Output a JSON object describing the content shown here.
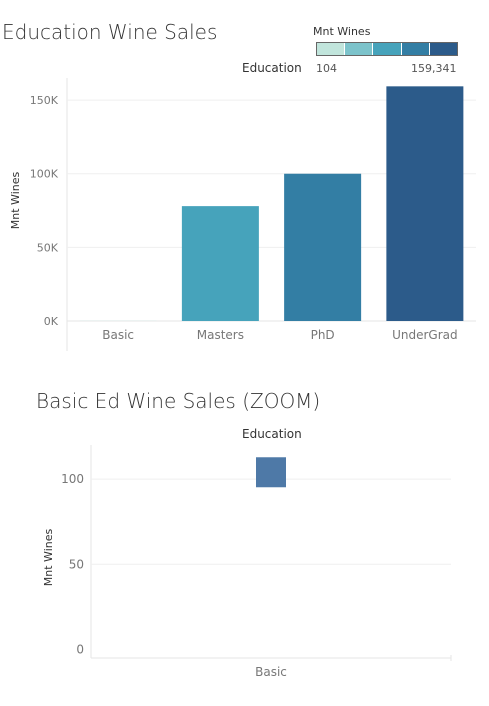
{
  "chart_data": [
    {
      "type": "bar",
      "title": "Education Wine Sales",
      "column_header": "Education",
      "ylabel": "Mnt Wines",
      "categories": [
        "Basic",
        "Masters",
        "PhD",
        "UnderGrad"
      ],
      "values": [
        104,
        78000,
        100000,
        159341
      ],
      "y_ticks": [
        "0K",
        "50K",
        "100K",
        "150K"
      ],
      "y_tick_values": [
        0,
        50000,
        100000,
        150000
      ],
      "ylim": [
        0,
        165000
      ],
      "grid": true,
      "color_legend": {
        "title": "Mnt Wines",
        "min_label": "104",
        "max_label": "159,341",
        "min": 104,
        "max": 159341,
        "colors": [
          "#c1e5dc",
          "#7cc3cb",
          "#46a3bb",
          "#337ea4",
          "#2c5b8a"
        ]
      }
    },
    {
      "type": "bar",
      "title": "Basic Ed Wine Sales (ZOOM)",
      "column_header": "Education",
      "ylabel": "Mnt Wines",
      "categories": [
        "Basic"
      ],
      "values": [
        104
      ],
      "y_ticks": [
        "0",
        "50",
        "100"
      ],
      "y_tick_values": [
        0,
        50,
        100
      ],
      "ylim": [
        -5,
        120
      ],
      "grid": true,
      "color": "#4e79a7"
    }
  ]
}
